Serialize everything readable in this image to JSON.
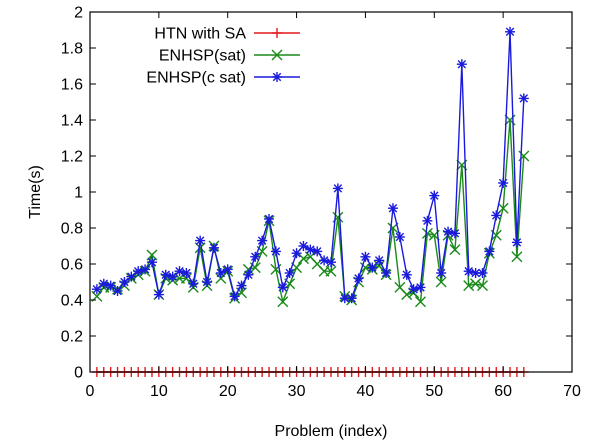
{
  "chart_data": {
    "type": "line",
    "xlabel": "Problem (index)",
    "ylabel": "Time(s)",
    "xlim": [
      0,
      70
    ],
    "ylim": [
      0,
      2
    ],
    "xticks": [
      0,
      10,
      20,
      30,
      40,
      50,
      60,
      70
    ],
    "yticks": [
      0,
      0.2,
      0.4,
      0.6,
      0.8,
      1,
      1.2,
      1.4,
      1.6,
      1.8,
      2
    ],
    "grid": false,
    "legend_position": "top-left",
    "x": [
      1,
      2,
      3,
      4,
      5,
      6,
      7,
      8,
      9,
      10,
      11,
      12,
      13,
      14,
      15,
      16,
      17,
      18,
      19,
      20,
      21,
      22,
      23,
      24,
      25,
      26,
      27,
      28,
      29,
      30,
      31,
      32,
      33,
      34,
      35,
      36,
      37,
      38,
      39,
      40,
      41,
      42,
      43,
      44,
      45,
      46,
      47,
      48,
      49,
      50,
      51,
      52,
      53,
      54,
      55,
      56,
      57,
      58,
      59,
      60,
      61,
      62,
      63
    ],
    "series": [
      {
        "name": "HTN with SA",
        "color": "#e41a1c",
        "marker": "plus",
        "values": [
          0,
          0,
          0,
          0,
          0,
          0,
          0,
          0,
          0,
          0,
          0,
          0,
          0,
          0,
          0,
          0,
          0,
          0,
          0,
          0,
          0,
          0,
          0,
          0,
          0,
          0,
          0,
          0,
          0,
          0,
          0,
          0,
          0,
          0,
          0,
          0,
          0,
          0,
          0,
          0,
          0,
          0,
          0,
          0,
          0,
          0,
          0,
          0,
          0,
          0,
          0,
          0,
          0,
          0,
          0,
          0,
          0,
          0,
          0,
          0,
          0,
          0,
          0
        ]
      },
      {
        "name": "ENHSP(sat)",
        "color": "#1a8a1a",
        "marker": "cross",
        "values": [
          0.42,
          0.47,
          0.47,
          0.46,
          0.48,
          0.52,
          0.54,
          0.56,
          0.65,
          0.43,
          0.52,
          0.51,
          0.52,
          0.52,
          0.47,
          0.69,
          0.48,
          0.7,
          0.52,
          0.56,
          0.41,
          0.44,
          0.57,
          0.58,
          0.67,
          0.84,
          0.57,
          0.39,
          0.49,
          0.58,
          0.63,
          0.64,
          0.6,
          0.56,
          0.56,
          0.86,
          0.42,
          0.4,
          0.5,
          0.58,
          0.57,
          0.59,
          0.54,
          0.8,
          0.47,
          0.43,
          0.44,
          0.39,
          0.77,
          0.76,
          0.5,
          0.76,
          0.68,
          1.15,
          0.48,
          0.49,
          0.48,
          0.66,
          0.76,
          0.91,
          1.4,
          0.64,
          1.2
        ]
      },
      {
        "name": "ENHSP(c sat)",
        "color": "#1a1adc",
        "marker": "star",
        "values": [
          0.46,
          0.49,
          0.48,
          0.45,
          0.5,
          0.53,
          0.56,
          0.57,
          0.61,
          0.43,
          0.54,
          0.53,
          0.56,
          0.55,
          0.49,
          0.73,
          0.5,
          0.69,
          0.55,
          0.57,
          0.42,
          0.48,
          0.54,
          0.64,
          0.73,
          0.85,
          0.67,
          0.47,
          0.55,
          0.66,
          0.7,
          0.68,
          0.67,
          0.62,
          0.61,
          1.02,
          0.41,
          0.41,
          0.52,
          0.64,
          0.58,
          0.62,
          0.55,
          0.91,
          0.75,
          0.54,
          0.46,
          0.47,
          0.84,
          0.98,
          0.55,
          0.78,
          0.77,
          1.71,
          0.56,
          0.55,
          0.55,
          0.67,
          0.87,
          1.05,
          1.89,
          0.72,
          1.52
        ]
      }
    ]
  }
}
